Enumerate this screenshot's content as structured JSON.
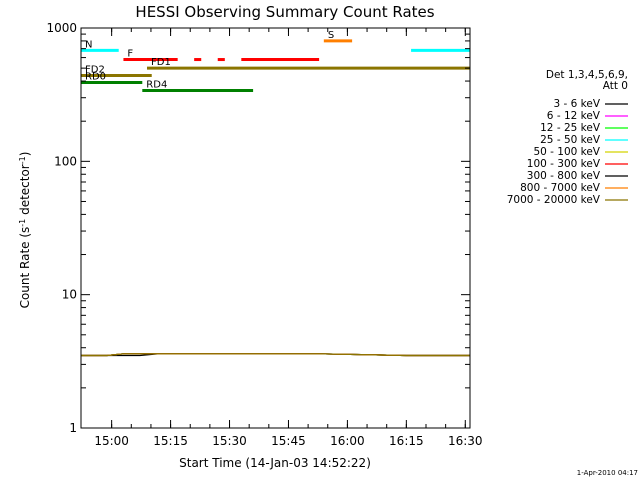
{
  "chart_data": {
    "type": "line",
    "title": "HESSI Observing Summary Count Rates",
    "xlabel": "Start Time (14-Jan-03 14:52:22)",
    "ylabel_prefix": "Count Rate (s",
    "ylabel_sup": "-1",
    "ylabel_mid": " detector",
    "ylabel_end": ")",
    "y_scale": "log",
    "ylim": [
      1,
      1000
    ],
    "xlim_minutes": [
      14.87,
      16.52
    ],
    "xlim": [
      "14:52:22",
      "16:31:00"
    ],
    "grid": false,
    "x_ticks": [
      {
        "t": 15.0,
        "label": "15:00"
      },
      {
        "t": 15.25,
        "label": "15:15"
      },
      {
        "t": 15.5,
        "label": "15:30"
      },
      {
        "t": 15.75,
        "label": "15:45"
      },
      {
        "t": 16.0,
        "label": "16:00"
      },
      {
        "t": 16.25,
        "label": "16:15"
      },
      {
        "t": 16.5,
        "label": "16:30"
      }
    ],
    "y_ticks": [
      {
        "v": 1,
        "label": "1"
      },
      {
        "v": 10,
        "label": "10"
      },
      {
        "v": 100,
        "label": "100"
      },
      {
        "v": 1000,
        "label": "1000"
      }
    ],
    "legend_header": [
      "Det 1,3,4,5,6,9,",
      "Att 0"
    ],
    "legend_position": "right",
    "series": [
      {
        "name": "3 - 6 keV",
        "color": "#000000",
        "t": [
          14.87,
          14.98,
          15.05,
          15.12,
          15.2,
          15.28,
          15.33,
          15.4,
          15.46,
          15.5,
          15.54,
          15.58,
          15.62,
          15.67,
          15.72,
          15.8,
          15.86,
          15.88,
          16.25,
          16.28,
          16.31,
          16.35,
          16.38,
          16.42,
          16.47,
          16.5,
          16.52
        ],
        "v": [
          3.5,
          3.5,
          3.5,
          3.5,
          3.6,
          3.6,
          3.6,
          3.6,
          3.6,
          3.6,
          3.6,
          3.6,
          3.6,
          3.6,
          3.6,
          3.6,
          3.6,
          3.6,
          3.5,
          3.5,
          3.5,
          3.5,
          3.5,
          3.5,
          3.5,
          3.5,
          3.5
        ]
      },
      {
        "name": "6 - 12 keV",
        "color": "#ff00ff",
        "t": [
          14.87,
          14.98,
          15.05,
          15.12,
          15.2,
          15.28,
          15.33,
          15.4,
          15.46,
          15.5,
          15.54,
          15.58,
          15.62,
          15.67,
          15.72,
          15.8,
          15.86,
          15.88,
          16.25,
          16.28,
          16.31,
          16.35,
          16.38,
          16.42,
          16.47,
          16.5,
          16.52
        ],
        "v": [
          3.5,
          3.5,
          3.6,
          3.6,
          3.6,
          3.6,
          3.6,
          3.6,
          3.6,
          3.6,
          3.6,
          3.6,
          3.6,
          3.6,
          3.6,
          3.6,
          3.6,
          3.6,
          3.5,
          3.5,
          3.5,
          3.5,
          3.5,
          3.5,
          3.5,
          3.5,
          3.5
        ]
      },
      {
        "name": "12 - 25 keV",
        "color": "#00ff00",
        "t": [
          14.87,
          14.98,
          15.05,
          15.12,
          15.2,
          15.28,
          15.33,
          15.4,
          15.46,
          15.5,
          15.54,
          15.58,
          15.62,
          15.67,
          15.72,
          15.8,
          15.86,
          15.88,
          16.25,
          16.28,
          16.31,
          16.35,
          16.38,
          16.42,
          16.47,
          16.5,
          16.52
        ],
        "v": [
          3.5,
          3.5,
          3.6,
          3.6,
          3.6,
          3.6,
          3.6,
          3.6,
          3.6,
          3.6,
          3.6,
          3.6,
          3.6,
          3.6,
          3.6,
          3.6,
          3.6,
          3.6,
          3.5,
          3.5,
          3.5,
          3.5,
          3.5,
          3.5,
          3.5,
          3.5,
          3.5
        ]
      },
      {
        "name": "25 - 50 keV",
        "color": "#00ffff",
        "t": [
          14.87,
          14.98,
          15.05,
          15.12,
          15.2,
          15.28,
          15.33,
          15.4,
          15.46,
          15.5,
          15.54,
          15.58,
          15.62,
          15.67,
          15.72,
          15.8,
          15.86,
          15.88,
          16.25,
          16.28,
          16.31,
          16.35,
          16.38,
          16.42,
          16.47,
          16.5,
          16.52
        ],
        "v": [
          3.5,
          3.5,
          3.6,
          3.6,
          3.6,
          3.6,
          3.6,
          3.6,
          3.6,
          3.6,
          3.6,
          3.6,
          3.6,
          3.6,
          3.6,
          3.6,
          3.6,
          3.6,
          3.5,
          3.5,
          3.5,
          3.5,
          3.5,
          3.5,
          3.5,
          3.5,
          3.5
        ]
      },
      {
        "name": "50 - 100 keV",
        "color": "#d4d400",
        "t": [
          14.87,
          14.98,
          15.05,
          15.12,
          15.2,
          15.28,
          15.33,
          15.4,
          15.46,
          15.5,
          15.54,
          15.58,
          15.62,
          15.67,
          15.72,
          15.8,
          15.86,
          15.88,
          16.25,
          16.28,
          16.31,
          16.35,
          16.38,
          16.42,
          16.47,
          16.5,
          16.52
        ],
        "v": [
          3.5,
          3.5,
          3.6,
          3.6,
          3.6,
          3.6,
          3.6,
          3.6,
          3.6,
          3.6,
          3.6,
          3.6,
          3.6,
          3.6,
          3.6,
          3.6,
          3.6,
          3.6,
          3.5,
          3.5,
          3.5,
          3.5,
          3.5,
          3.5,
          3.5,
          3.5,
          3.5
        ]
      },
      {
        "name": "100 - 300 keV",
        "color": "#ff0000",
        "t": [
          14.87,
          14.98,
          15.05,
          15.12,
          15.2,
          15.28,
          15.33,
          15.4,
          15.46,
          15.5,
          15.54,
          15.58,
          15.62,
          15.67,
          15.72,
          15.8,
          15.86,
          15.88,
          16.25,
          16.28,
          16.31,
          16.35,
          16.38,
          16.42,
          16.47,
          16.5,
          16.52
        ],
        "v": [
          3.5,
          3.5,
          3.6,
          3.6,
          3.6,
          3.6,
          3.6,
          3.6,
          3.6,
          3.6,
          3.6,
          3.6,
          3.6,
          3.6,
          3.6,
          3.6,
          3.6,
          3.6,
          3.5,
          3.5,
          3.5,
          3.5,
          3.5,
          3.5,
          3.5,
          3.5,
          3.5
        ]
      },
      {
        "name": "300 - 800 keV",
        "color": "#000000",
        "t": [
          14.87,
          14.98,
          15.05,
          15.12,
          15.2,
          15.28,
          15.33,
          15.4,
          15.46,
          15.5,
          15.54,
          15.58,
          15.62,
          15.67,
          15.72,
          15.8,
          15.86,
          15.88,
          16.25,
          16.28,
          16.31,
          16.35,
          16.38,
          16.42,
          16.47,
          16.5,
          16.52
        ],
        "v": [
          3.5,
          3.5,
          3.6,
          3.6,
          3.6,
          3.6,
          3.6,
          3.6,
          3.6,
          3.6,
          3.6,
          3.6,
          3.6,
          3.6,
          3.6,
          3.6,
          3.6,
          3.6,
          3.5,
          3.5,
          3.5,
          3.5,
          3.5,
          3.5,
          3.5,
          3.5,
          3.5
        ]
      },
      {
        "name": "800 - 7000 keV",
        "color": "#ff7f00",
        "t": [
          14.87,
          14.98,
          15.05,
          15.12,
          15.2,
          15.28,
          15.33,
          15.4,
          15.46,
          15.5,
          15.54,
          15.58,
          15.62,
          15.67,
          15.72,
          15.8,
          15.86,
          15.88,
          16.25,
          16.28,
          16.31,
          16.35,
          16.38,
          16.42,
          16.47,
          16.5,
          16.52
        ],
        "v": [
          3.5,
          3.5,
          3.6,
          3.6,
          3.6,
          3.6,
          3.6,
          3.6,
          3.6,
          3.6,
          3.6,
          3.6,
          3.6,
          3.6,
          3.6,
          3.6,
          3.6,
          3.6,
          3.5,
          3.5,
          3.5,
          3.5,
          3.5,
          3.5,
          3.5,
          3.5,
          3.5
        ]
      },
      {
        "name": "7000 - 20000 keV",
        "color": "#8b7500",
        "t": [
          14.87,
          14.98,
          15.05,
          15.12,
          15.2,
          15.28,
          15.33,
          15.4,
          15.46,
          15.5,
          15.54,
          15.58,
          15.62,
          15.67,
          15.72,
          15.8,
          15.86,
          15.88,
          16.25,
          16.28,
          16.31,
          16.35,
          16.38,
          16.42,
          16.47,
          16.5,
          16.52
        ],
        "v": [
          3.5,
          3.5,
          3.6,
          3.6,
          3.6,
          3.6,
          3.6,
          3.6,
          3.6,
          3.6,
          3.6,
          3.6,
          3.6,
          3.6,
          3.6,
          3.6,
          3.6,
          3.6,
          3.5,
          3.5,
          3.5,
          3.5,
          3.5,
          3.5,
          3.5,
          3.5,
          3.5
        ]
      }
    ],
    "state_bars": [
      {
        "label": "N",
        "color": "#00ffff",
        "level": 680,
        "segments": [
          [
            14.87,
            15.03
          ],
          [
            16.27,
            16.52
          ]
        ]
      },
      {
        "label": "S",
        "color": "#ff7f00",
        "level": 800,
        "segments": [
          [
            15.9,
            16.02
          ]
        ]
      },
      {
        "label": "F",
        "color": "#ff0000",
        "level": 580,
        "segments": [
          [
            15.05,
            15.28
          ],
          [
            15.35,
            15.38
          ],
          [
            15.45,
            15.48
          ],
          [
            15.55,
            15.88
          ]
        ]
      },
      {
        "label": "FD1",
        "color": "#8b7500",
        "level": 500,
        "segments": [
          [
            15.15,
            16.52
          ]
        ]
      },
      {
        "label": "FD2",
        "color": "#8b7500",
        "level": 440,
        "segments": [
          [
            14.87,
            15.17
          ]
        ]
      },
      {
        "label": "RD0",
        "color": "#008000",
        "level": 390,
        "segments": [
          [
            14.87,
            15.13
          ]
        ]
      },
      {
        "label": "RD4",
        "color": "#008000",
        "level": 340,
        "segments": [
          [
            15.13,
            15.6
          ]
        ]
      }
    ]
  },
  "timestamp": "1-Apr-2010 04:17"
}
